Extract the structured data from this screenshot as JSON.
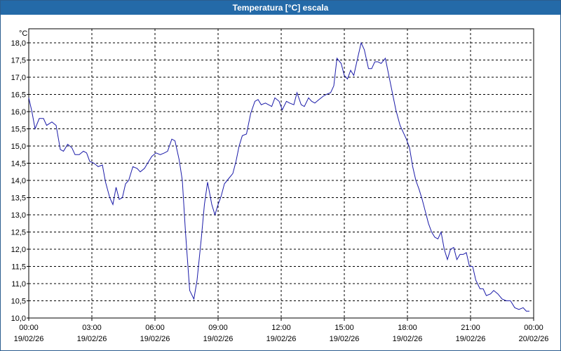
{
  "window": {
    "title": "Temperatura [°C] escala"
  },
  "colors": {
    "titlebar": "#246aa8",
    "line": "#1a1aa8",
    "grid": "#000000"
  },
  "chart_data": {
    "type": "line",
    "title": "Temperatura [°C] escala",
    "ylabel": "°C",
    "ylim": [
      10.0,
      18.0
    ],
    "yticks": [
      "10,0",
      "10,5",
      "11,0",
      "11,5",
      "12,0",
      "12,5",
      "13,0",
      "13,5",
      "14,0",
      "14,5",
      "15,0",
      "15,5",
      "16,0",
      "16,5",
      "17,0",
      "17,5",
      "18,0"
    ],
    "xlim_hours": [
      0,
      24
    ],
    "xticks": [
      {
        "time": "00:00",
        "date": "19/02/26"
      },
      {
        "time": "03:00",
        "date": "19/02/26"
      },
      {
        "time": "06:00",
        "date": "19/02/26"
      },
      {
        "time": "09:00",
        "date": "19/02/26"
      },
      {
        "time": "12:00",
        "date": "19/02/26"
      },
      {
        "time": "15:00",
        "date": "19/02/26"
      },
      {
        "time": "18:00",
        "date": "19/02/26"
      },
      {
        "time": "21:00",
        "date": "19/02/26"
      },
      {
        "time": "00:00",
        "date": "20/02/26"
      }
    ],
    "grid": true,
    "series": [
      {
        "values": [
          [
            0.0,
            16.4
          ],
          [
            0.15,
            16.0
          ],
          [
            0.3,
            15.5
          ],
          [
            0.5,
            15.8
          ],
          [
            0.7,
            15.8
          ],
          [
            0.85,
            15.6
          ],
          [
            1.1,
            15.7
          ],
          [
            1.3,
            15.6
          ],
          [
            1.5,
            14.9
          ],
          [
            1.65,
            14.85
          ],
          [
            1.85,
            15.05
          ],
          [
            2.05,
            14.95
          ],
          [
            2.2,
            14.75
          ],
          [
            2.4,
            14.75
          ],
          [
            2.6,
            14.85
          ],
          [
            2.75,
            14.8
          ],
          [
            2.9,
            14.55
          ],
          [
            3.1,
            14.5
          ],
          [
            3.3,
            14.4
          ],
          [
            3.5,
            14.45
          ],
          [
            3.65,
            13.95
          ],
          [
            3.85,
            13.5
          ],
          [
            4.0,
            13.3
          ],
          [
            4.15,
            13.8
          ],
          [
            4.3,
            13.45
          ],
          [
            4.45,
            13.5
          ],
          [
            4.6,
            13.9
          ],
          [
            4.75,
            14.0
          ],
          [
            4.95,
            14.4
          ],
          [
            5.15,
            14.35
          ],
          [
            5.3,
            14.25
          ],
          [
            5.5,
            14.35
          ],
          [
            5.7,
            14.55
          ],
          [
            5.85,
            14.7
          ],
          [
            6.05,
            14.8
          ],
          [
            6.25,
            14.75
          ],
          [
            6.45,
            14.8
          ],
          [
            6.6,
            14.85
          ],
          [
            6.8,
            15.2
          ],
          [
            6.95,
            15.15
          ],
          [
            7.15,
            14.6
          ],
          [
            7.3,
            14.0
          ],
          [
            7.45,
            12.5
          ],
          [
            7.65,
            10.8
          ],
          [
            7.85,
            10.55
          ],
          [
            8.0,
            11.1
          ],
          [
            8.2,
            12.3
          ],
          [
            8.35,
            13.3
          ],
          [
            8.5,
            13.95
          ],
          [
            8.7,
            13.3
          ],
          [
            8.85,
            13.0
          ],
          [
            9.0,
            13.3
          ],
          [
            9.15,
            13.55
          ],
          [
            9.3,
            13.9
          ],
          [
            9.5,
            14.05
          ],
          [
            9.7,
            14.2
          ],
          [
            9.85,
            14.55
          ],
          [
            10.0,
            15.0
          ],
          [
            10.15,
            15.3
          ],
          [
            10.35,
            15.35
          ],
          [
            10.55,
            15.95
          ],
          [
            10.75,
            16.3
          ],
          [
            10.9,
            16.35
          ],
          [
            11.05,
            16.2
          ],
          [
            11.25,
            16.25
          ],
          [
            11.4,
            16.2
          ],
          [
            11.55,
            16.15
          ],
          [
            11.7,
            16.4
          ],
          [
            11.9,
            16.3
          ],
          [
            12.05,
            16.05
          ],
          [
            12.25,
            16.3
          ],
          [
            12.4,
            16.25
          ],
          [
            12.6,
            16.2
          ],
          [
            12.75,
            16.55
          ],
          [
            12.95,
            16.2
          ],
          [
            13.1,
            16.15
          ],
          [
            13.3,
            16.4
          ],
          [
            13.45,
            16.3
          ],
          [
            13.6,
            16.25
          ],
          [
            13.8,
            16.35
          ],
          [
            14.0,
            16.45
          ],
          [
            14.15,
            16.5
          ],
          [
            14.35,
            16.55
          ],
          [
            14.5,
            16.75
          ],
          [
            14.65,
            17.55
          ],
          [
            14.85,
            17.4
          ],
          [
            15.0,
            17.05
          ],
          [
            15.15,
            16.95
          ],
          [
            15.3,
            17.2
          ],
          [
            15.45,
            17.05
          ],
          [
            15.65,
            17.6
          ],
          [
            15.8,
            18.0
          ],
          [
            15.95,
            17.8
          ],
          [
            16.15,
            17.25
          ],
          [
            16.3,
            17.25
          ],
          [
            16.45,
            17.45
          ],
          [
            16.6,
            17.45
          ],
          [
            16.75,
            17.4
          ],
          [
            16.95,
            17.55
          ],
          [
            17.1,
            17.1
          ],
          [
            17.3,
            16.5
          ],
          [
            17.45,
            16.05
          ],
          [
            17.65,
            15.6
          ],
          [
            17.8,
            15.4
          ],
          [
            17.95,
            15.2
          ],
          [
            18.1,
            14.95
          ],
          [
            18.25,
            14.4
          ],
          [
            18.4,
            14.0
          ],
          [
            18.55,
            13.75
          ],
          [
            18.7,
            13.45
          ],
          [
            18.85,
            13.1
          ],
          [
            19.0,
            12.75
          ],
          [
            19.15,
            12.5
          ],
          [
            19.3,
            12.35
          ],
          [
            19.45,
            12.3
          ],
          [
            19.6,
            12.5
          ],
          [
            19.75,
            12.0
          ],
          [
            19.9,
            11.7
          ],
          [
            20.05,
            12.0
          ],
          [
            20.2,
            12.05
          ],
          [
            20.35,
            11.7
          ],
          [
            20.5,
            11.85
          ],
          [
            20.65,
            11.85
          ],
          [
            20.8,
            11.9
          ],
          [
            20.95,
            11.5
          ],
          [
            21.1,
            11.5
          ],
          [
            21.25,
            11.1
          ],
          [
            21.45,
            10.85
          ],
          [
            21.6,
            10.85
          ],
          [
            21.75,
            10.65
          ],
          [
            21.95,
            10.7
          ],
          [
            22.1,
            10.8
          ],
          [
            22.3,
            10.7
          ],
          [
            22.5,
            10.55
          ],
          [
            22.7,
            10.5
          ],
          [
            22.9,
            10.5
          ],
          [
            23.1,
            10.3
          ],
          [
            23.3,
            10.25
          ],
          [
            23.5,
            10.3
          ],
          [
            23.65,
            10.2
          ],
          [
            23.8,
            10.2
          ]
        ]
      }
    ]
  }
}
